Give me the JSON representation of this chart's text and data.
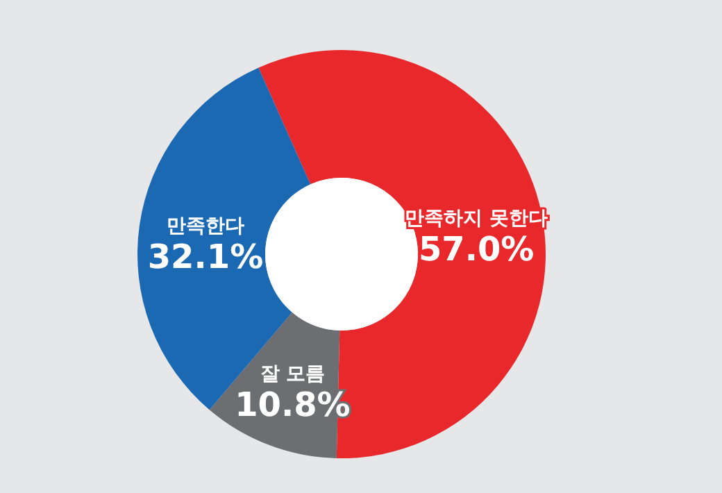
{
  "chart_data": {
    "type": "donut",
    "categories": [
      "만족하지 못한다",
      "잘 모름",
      "만족한다"
    ],
    "values": [
      57.0,
      10.8,
      32.1
    ],
    "colors": [
      "#e8282b",
      "#6d6e71",
      "#1b68b3"
    ],
    "value_labels": [
      "57.0%",
      "10.8%",
      "32.1%"
    ]
  }
}
